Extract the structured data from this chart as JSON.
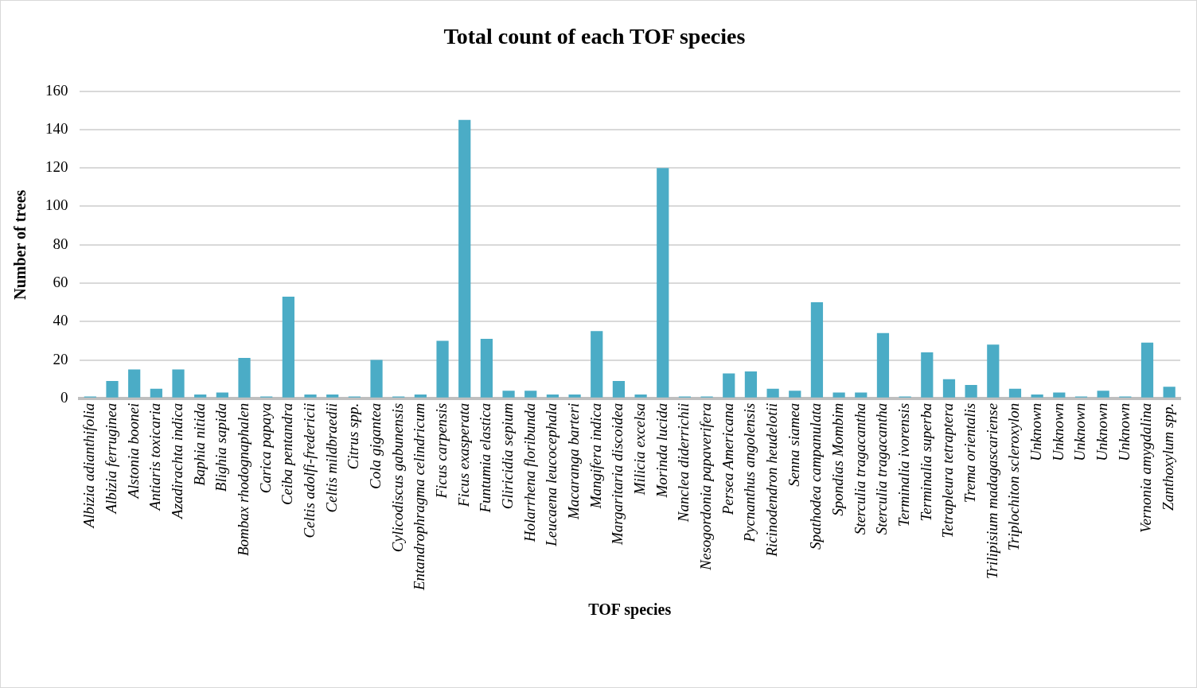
{
  "chart_data": {
    "type": "bar",
    "title": "Total count of each TOF species",
    "xlabel": "TOF species",
    "ylabel": "Number of trees",
    "categories": [
      "Albizia adianthifolia",
      "Albizia ferruginea",
      "Alstonia boonei",
      "Antiaris toxicaria",
      "Azadirachta indica",
      "Baphia nitida",
      "Blighia sapida",
      "Bombax rhodognaphalen",
      "Carica papaya",
      "Ceiba pentandra",
      "Celtis adolfi-fredericii",
      "Celtis mildbraedii",
      "Citrus spp.",
      "Cola gigantea",
      "Cylicodiscus gabunensis",
      "Entandrophragma celindricum",
      "Ficus carpensis",
      "Ficus exasperata",
      "Funtumia elastica",
      "Gliricidia sepium",
      "Holarrhena floribunda",
      "Leucaena leucocephala",
      "Macaranga barteri",
      "Mangifera indica",
      "Margaritaria discoidea",
      "Milicia excelsa",
      "Morinda lucida",
      "Nanclea diderrichii",
      "Nesogordonia papaverifera",
      "Persea Americana",
      "Pycnanthus angolensis",
      "Ricinodendron heudelotii",
      "Senna siamea",
      "Spathodea campanulata",
      "Spondias Mombim",
      "Sterculia tragacantha",
      "Sterculia tragacantha",
      "Terminalia ivorensis",
      "Terminalia superba",
      "Tetrapleura tetraptera",
      "Trema orientalis",
      "Trilipisium madagascariense",
      "Triplochiton scleroxylon",
      "Unknown",
      "Unknown",
      "Unknown",
      "Unknown",
      "Unknown",
      "Vernonia amygdalina",
      "Zanthoxylum spp."
    ],
    "values": [
      1,
      9,
      15,
      5,
      15,
      2,
      3,
      21,
      1,
      53,
      2,
      2,
      1,
      20,
      1,
      2,
      30,
      145,
      31,
      4,
      4,
      2,
      2,
      35,
      9,
      2,
      120,
      1,
      1,
      13,
      14,
      5,
      4,
      50,
      3,
      3,
      34,
      1,
      24,
      10,
      7,
      28,
      5,
      2,
      3,
      1,
      4,
      1,
      29,
      6
    ],
    "color": "#4bacc6",
    "ylim": [
      0,
      160
    ],
    "yticks": [
      0,
      20,
      40,
      60,
      80,
      100,
      120,
      140,
      160
    ],
    "grid": "y"
  }
}
